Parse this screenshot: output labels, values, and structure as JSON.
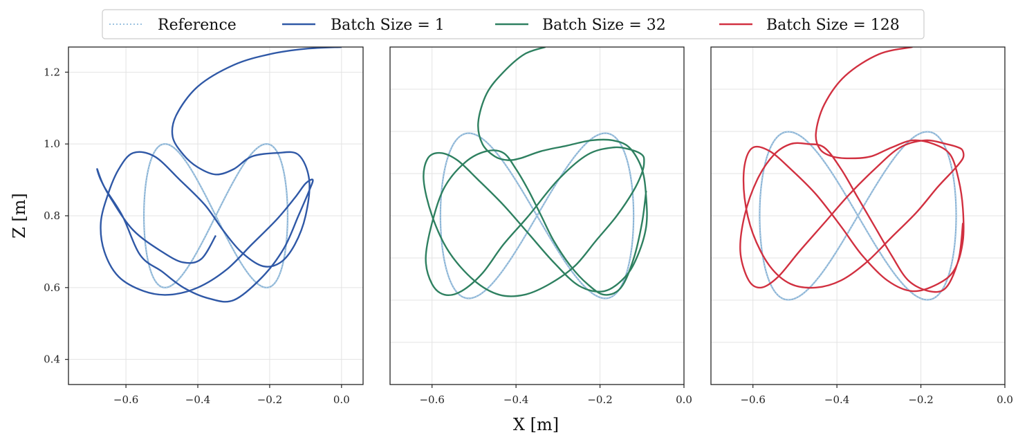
{
  "chart_data": {
    "type": "line",
    "xlabel": "X [m]",
    "ylabel": "Z [m]",
    "legend": {
      "placement": "top-center",
      "entries": [
        {
          "label": "Reference",
          "color": "#7aaed6",
          "style": "dotted"
        },
        {
          "label": "Batch Size = 1",
          "color": "#2f58a6",
          "style": "solid"
        },
        {
          "label": "Batch Size = 32",
          "color": "#2e8060",
          "style": "solid"
        },
        {
          "label": "Batch Size = 128",
          "color": "#d13040",
          "style": "solid"
        }
      ]
    },
    "reference": {
      "shape": "figure-eight",
      "x_center": -0.35,
      "x_amplitude": 0.2,
      "z_center": 0.8,
      "z_amplitude": 0.2,
      "color": "#8ab4d6"
    },
    "panels": [
      {
        "name": "panel-batch-1",
        "xlim": [
          -0.76,
          0.06
        ],
        "ylim": [
          0.33,
          1.27
        ],
        "xticks": [
          -0.6,
          -0.4,
          -0.2,
          0.0
        ],
        "xtick_labels": [
          "−0.6",
          "−0.4",
          "−0.2",
          "0.0"
        ],
        "yticks": [
          0.4,
          0.6,
          0.8,
          1.0,
          1.2
        ],
        "ytick_labels": [
          "0.4",
          "0.6",
          "0.8",
          "1.0",
          "1.2"
        ],
        "show_ylabels": true,
        "reference_scale": 1.0,
        "series": {
          "name": "Batch Size = 1",
          "color": "#2f58a6",
          "x": [
            0.0,
            -0.1,
            -0.2,
            -0.3,
            -0.4,
            -0.46,
            -0.47,
            -0.44,
            -0.4,
            -0.35,
            -0.3,
            -0.25,
            -0.18,
            -0.12,
            -0.09,
            -0.1,
            -0.13,
            -0.17,
            -0.22,
            -0.28,
            -0.33,
            -0.38,
            -0.45,
            -0.52,
            -0.58,
            -0.62,
            -0.65,
            -0.67,
            -0.66,
            -0.62,
            -0.55,
            -0.48,
            -0.4,
            -0.32,
            -0.25,
            -0.18,
            -0.13,
            -0.1,
            -0.08,
            -0.09,
            -0.12,
            -0.16,
            -0.22,
            -0.3,
            -0.37,
            -0.44,
            -0.5,
            -0.56,
            -0.61,
            -0.66,
            -0.68,
            -0.67,
            -0.64,
            -0.58,
            -0.5,
            -0.44,
            -0.39,
            -0.35
          ],
          "z": [
            1.27,
            1.265,
            1.25,
            1.22,
            1.16,
            1.08,
            1.02,
            0.97,
            0.935,
            0.915,
            0.93,
            0.965,
            0.975,
            0.97,
            0.9,
            0.8,
            0.72,
            0.67,
            0.66,
            0.7,
            0.76,
            0.83,
            0.9,
            0.965,
            0.975,
            0.93,
            0.86,
            0.78,
            0.7,
            0.63,
            0.59,
            0.58,
            0.6,
            0.65,
            0.72,
            0.79,
            0.85,
            0.89,
            0.9,
            0.87,
            0.8,
            0.71,
            0.63,
            0.565,
            0.57,
            0.6,
            0.645,
            0.69,
            0.8,
            0.88,
            0.93,
            0.9,
            0.845,
            0.76,
            0.7,
            0.67,
            0.68,
            0.745
          ]
        }
      },
      {
        "name": "panel-batch-32",
        "xlim": [
          -0.7,
          0.0
        ],
        "ylim": [
          0.33,
          1.27
        ],
        "xticks": [
          -0.6,
          -0.4,
          -0.2,
          0.0
        ],
        "xtick_labels": [
          "−0.6",
          "−0.4",
          "−0.2",
          "0.0"
        ],
        "yticks": [
          0.4,
          0.6,
          0.8,
          1.0,
          1.2
        ],
        "ytick_labels": [],
        "show_ylabels": false,
        "reference_scale": 1.15,
        "series": {
          "name": "Batch Size = 32",
          "color": "#2e8060",
          "x": [
            -0.33,
            -0.38,
            -0.43,
            -0.47,
            -0.49,
            -0.48,
            -0.45,
            -0.42,
            -0.39,
            -0.34,
            -0.28,
            -0.22,
            -0.17,
            -0.13,
            -0.1,
            -0.09,
            -0.09,
            -0.11,
            -0.14,
            -0.19,
            -0.25,
            -0.31,
            -0.37,
            -0.43,
            -0.49,
            -0.54,
            -0.58,
            -0.61,
            -0.62,
            -0.6,
            -0.56,
            -0.5,
            -0.44,
            -0.38,
            -0.32,
            -0.26,
            -0.21,
            -0.16,
            -0.12,
            -0.1,
            -0.095,
            -0.1,
            -0.13,
            -0.17,
            -0.23,
            -0.3,
            -0.37,
            -0.43,
            -0.48,
            -0.53,
            -0.57,
            -0.6,
            -0.615,
            -0.6,
            -0.57,
            -0.52,
            -0.47,
            -0.43,
            -0.4,
            -0.37,
            -0.34,
            -0.31,
            -0.27,
            -0.23,
            -0.19,
            -0.15,
            -0.12,
            -0.1,
            -0.09
          ],
          "z": [
            1.27,
            1.25,
            1.2,
            1.14,
            1.06,
            1.0,
            0.965,
            0.955,
            0.96,
            0.98,
            0.995,
            1.01,
            1.01,
            0.99,
            0.93,
            0.85,
            0.77,
            0.69,
            0.63,
            0.59,
            0.605,
            0.67,
            0.75,
            0.83,
            0.9,
            0.955,
            0.975,
            0.96,
            0.9,
            0.8,
            0.7,
            0.62,
            0.58,
            0.58,
            0.61,
            0.66,
            0.73,
            0.8,
            0.87,
            0.92,
            0.95,
            0.97,
            0.985,
            0.99,
            0.97,
            0.9,
            0.8,
            0.72,
            0.64,
            0.59,
            0.58,
            0.61,
            0.68,
            0.78,
            0.88,
            0.95,
            0.98,
            0.975,
            0.93,
            0.87,
            0.8,
            0.73,
            0.66,
            0.61,
            0.58,
            0.6,
            0.68,
            0.78,
            0.87
          ]
        }
      },
      {
        "name": "panel-batch-128",
        "xlim": [
          -0.7,
          0.0
        ],
        "ylim": [
          0.33,
          1.27
        ],
        "xticks": [
          -0.6,
          -0.4,
          -0.2,
          0.0
        ],
        "xtick_labels": [
          "−0.6",
          "−0.4",
          "−0.2",
          "0.0"
        ],
        "yticks": [
          0.4,
          0.6,
          0.8,
          1.0,
          1.2
        ],
        "ytick_labels": [],
        "show_ylabels": false,
        "reference_scale": 1.17,
        "series": {
          "name": "Batch Size = 128",
          "color": "#d13040",
          "x": [
            -0.22,
            -0.3,
            -0.38,
            -0.43,
            -0.45,
            -0.44,
            -0.41,
            -0.37,
            -0.32,
            -0.27,
            -0.22,
            -0.17,
            -0.13,
            -0.11,
            -0.1,
            -0.1,
            -0.12,
            -0.16,
            -0.22,
            -0.28,
            -0.34,
            -0.39,
            -0.45,
            -0.51,
            -0.56,
            -0.6,
            -0.62,
            -0.62,
            -0.6,
            -0.56,
            -0.51,
            -0.45,
            -0.39,
            -0.33,
            -0.27,
            -0.21,
            -0.16,
            -0.12,
            -0.1,
            -0.1,
            -0.11,
            -0.14,
            -0.19,
            -0.25,
            -0.31,
            -0.37,
            -0.43,
            -0.49,
            -0.54,
            -0.58,
            -0.61,
            -0.63,
            -0.62,
            -0.59,
            -0.55,
            -0.51,
            -0.47,
            -0.43,
            -0.39,
            -0.35,
            -0.31,
            -0.27,
            -0.23,
            -0.18,
            -0.14,
            -0.11,
            -0.1
          ],
          "z": [
            1.27,
            1.25,
            1.19,
            1.11,
            1.03,
            0.985,
            0.965,
            0.96,
            0.965,
            0.99,
            1.01,
            1.0,
            0.97,
            0.9,
            0.82,
            0.73,
            0.65,
            0.61,
            0.59,
            0.62,
            0.69,
            0.77,
            0.86,
            0.93,
            0.98,
            0.99,
            0.94,
            0.85,
            0.75,
            0.66,
            0.61,
            0.6,
            0.62,
            0.67,
            0.74,
            0.81,
            0.88,
            0.93,
            0.96,
            0.98,
            0.99,
            1.0,
            1.01,
            0.99,
            0.93,
            0.86,
            0.78,
            0.7,
            0.63,
            0.6,
            0.62,
            0.7,
            0.8,
            0.9,
            0.97,
            1.0,
            1.0,
            0.99,
            0.93,
            0.85,
            0.77,
            0.69,
            0.62,
            0.59,
            0.6,
            0.68,
            0.78
          ]
        }
      }
    ]
  }
}
